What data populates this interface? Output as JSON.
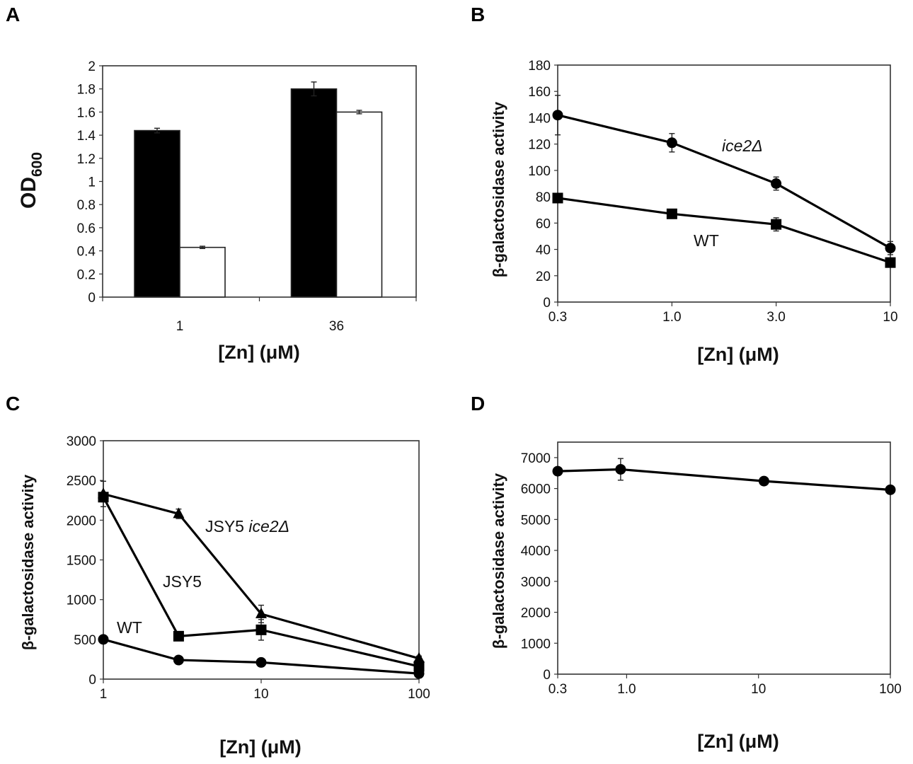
{
  "figure": {
    "panels": [
      "A",
      "B",
      "C",
      "D"
    ]
  },
  "chart_data": [
    {
      "id": "A",
      "type": "bar",
      "panel_label": "A",
      "title": "",
      "xlabel": "[Zn] (μM)",
      "ylabel": "OD",
      "ylabel_subscript": "600",
      "categories": [
        "1",
        "36"
      ],
      "series": [
        {
          "name": "black bars",
          "color": "#000000",
          "values": [
            1.44,
            1.8
          ],
          "errors": [
            0.02,
            0.06
          ]
        },
        {
          "name": "white bars",
          "color": "#ffffff",
          "values": [
            0.43,
            1.6
          ],
          "errors": [
            0.01,
            0.015
          ]
        }
      ],
      "ylim": [
        0,
        2
      ],
      "yticks": [
        "0",
        "0.2",
        "0.4",
        "0.6",
        "0.8",
        "1",
        "1.2",
        "1.4",
        "1.6",
        "1.8",
        "2"
      ],
      "grid": false,
      "legend": "none"
    },
    {
      "id": "B",
      "type": "line",
      "panel_label": "B",
      "title": "",
      "xlabel": "[Zn] (μM)",
      "ylabel": "β-galactosidase activity",
      "x": [
        0.3,
        1.0,
        3.0,
        10
      ],
      "xticks": [
        "0.3",
        "1.0",
        "3.0",
        "10"
      ],
      "xscale": "log",
      "series": [
        {
          "name": "ice2Δ",
          "marker": "circle",
          "values": [
            142,
            121,
            90,
            41
          ],
          "errors": [
            15,
            7,
            5,
            5
          ]
        },
        {
          "name": "WT",
          "marker": "square",
          "values": [
            79,
            67,
            59,
            30
          ],
          "errors": [
            2,
            2,
            5,
            2
          ]
        }
      ],
      "ylim": [
        0,
        180
      ],
      "yticks": [
        "0",
        "20",
        "40",
        "60",
        "80",
        "100",
        "120",
        "140",
        "160",
        "180"
      ],
      "annotations": [
        {
          "text": "ice2Δ",
          "italic": true,
          "series": "ice2Δ"
        },
        {
          "text": "WT",
          "italic": false,
          "series": "WT"
        }
      ],
      "grid": false,
      "legend": "none"
    },
    {
      "id": "C",
      "type": "line",
      "panel_label": "C",
      "title": "",
      "xlabel": "[Zn] (μM)",
      "ylabel": "β-galactosidase activity",
      "x": [
        1,
        3,
        10,
        100
      ],
      "xticks": [
        "1",
        "10",
        "100"
      ],
      "xscale": "log",
      "series": [
        {
          "name": "JSY5 ice2Δ",
          "marker": "triangle",
          "values": [
            2330,
            2080,
            820,
            260
          ],
          "errors": [
            160,
            60,
            110,
            30
          ]
        },
        {
          "name": "JSY5",
          "marker": "square",
          "values": [
            2290,
            540,
            620,
            160
          ],
          "errors": [
            60,
            20,
            130,
            20
          ]
        },
        {
          "name": "WT",
          "marker": "circle",
          "values": [
            500,
            240,
            210,
            70
          ],
          "errors": [
            10,
            10,
            40,
            10
          ]
        }
      ],
      "ylim": [
        0,
        3000
      ],
      "yticks": [
        "0",
        "500",
        "1000",
        "1500",
        "2000",
        "2500",
        "3000"
      ],
      "annotations": [
        {
          "text_plain": "JSY5 ",
          "text_italic": "ice2Δ",
          "series": "JSY5 ice2Δ"
        },
        {
          "text_plain": "JSY5",
          "text_italic": "",
          "series": "JSY5"
        },
        {
          "text_plain": "WT",
          "text_italic": "",
          "series": "WT"
        }
      ],
      "grid": false,
      "legend": "none"
    },
    {
      "id": "D",
      "type": "line",
      "panel_label": "D",
      "title": "",
      "xlabel": "[Zn] (μM)",
      "ylabel": "β-galactosidase activity",
      "x": [
        0.3,
        0.9,
        11,
        100
      ],
      "xticks": [
        "0.3",
        "1.0",
        "10",
        "100"
      ],
      "xtick_values": [
        0.3,
        1.0,
        10,
        100
      ],
      "xscale": "log",
      "series": [
        {
          "name": "series",
          "marker": "circle",
          "values": [
            6560,
            6620,
            6240,
            5960
          ],
          "errors": [
            30,
            350,
            40,
            30
          ]
        }
      ],
      "ylim": [
        0,
        7500
      ],
      "yticks": [
        "0",
        "1000",
        "2000",
        "3000",
        "4000",
        "5000",
        "6000",
        "7000"
      ],
      "grid": false,
      "legend": "none"
    }
  ]
}
